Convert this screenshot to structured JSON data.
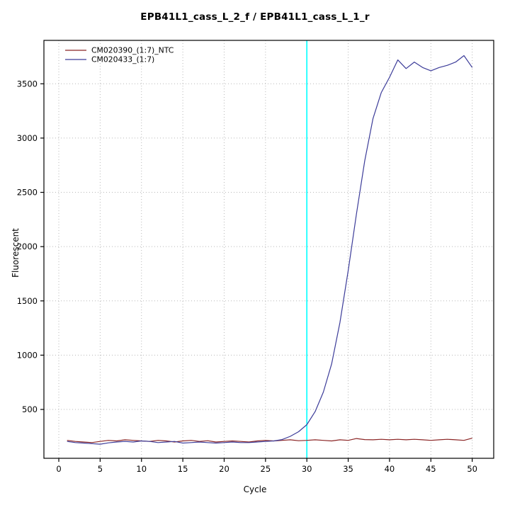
{
  "title": "EPB41L1_cass_L_2_f / EPB41L1_cass_L_1_r",
  "chart_data": {
    "type": "line",
    "title": "EPB41L1_cass_L_2_f / EPB41L1_cass_L_1_r",
    "xlabel": "Cycle",
    "ylabel": "Fluorescent",
    "x": [
      1,
      2,
      3,
      4,
      5,
      6,
      7,
      8,
      9,
      10,
      11,
      12,
      13,
      14,
      15,
      16,
      17,
      18,
      19,
      20,
      21,
      22,
      23,
      24,
      25,
      26,
      27,
      28,
      29,
      30,
      31,
      32,
      33,
      34,
      35,
      36,
      37,
      38,
      39,
      40,
      41,
      42,
      43,
      44,
      45,
      46,
      47,
      48,
      49,
      50
    ],
    "series": [
      {
        "name": "CM020390_(1:7)_NTC",
        "color": "#8B2525",
        "values": [
          215,
          205,
          200,
          195,
          205,
          215,
          210,
          220,
          215,
          210,
          205,
          215,
          210,
          200,
          210,
          215,
          205,
          212,
          200,
          205,
          210,
          205,
          200,
          210,
          215,
          210,
          215,
          220,
          212,
          215,
          220,
          215,
          210,
          220,
          215,
          232,
          222,
          220,
          225,
          220,
          225,
          220,
          225,
          220,
          215,
          220,
          225,
          220,
          215,
          235
        ]
      },
      {
        "name": "CM020433_(1:7)",
        "color": "#3C3C99",
        "values": [
          205,
          195,
          190,
          185,
          180,
          192,
          200,
          205,
          200,
          210,
          205,
          195,
          200,
          205,
          190,
          195,
          200,
          195,
          190,
          195,
          200,
          195,
          195,
          200,
          205,
          210,
          222,
          252,
          295,
          360,
          480,
          660,
          920,
          1300,
          1780,
          2300,
          2790,
          3180,
          3420,
          3560,
          3720,
          3640,
          3700,
          3650,
          3620,
          3650,
          3670,
          3700,
          3760,
          3650
        ]
      }
    ],
    "threshold_line": {
      "x": 30,
      "color": "#00FFFF"
    },
    "xticks": [
      0,
      5,
      10,
      15,
      20,
      25,
      30,
      35,
      40,
      45,
      50
    ],
    "yticks": [
      500,
      1000,
      1500,
      2000,
      2500,
      3000,
      3500
    ],
    "xlim": [
      -1.8,
      52.6
    ],
    "ylim": [
      50,
      3900
    ],
    "grid": true,
    "grid_style": "dotted",
    "grid_color": "#b8b8b8",
    "legend_position": "top-left",
    "axis_color": "#000000"
  }
}
